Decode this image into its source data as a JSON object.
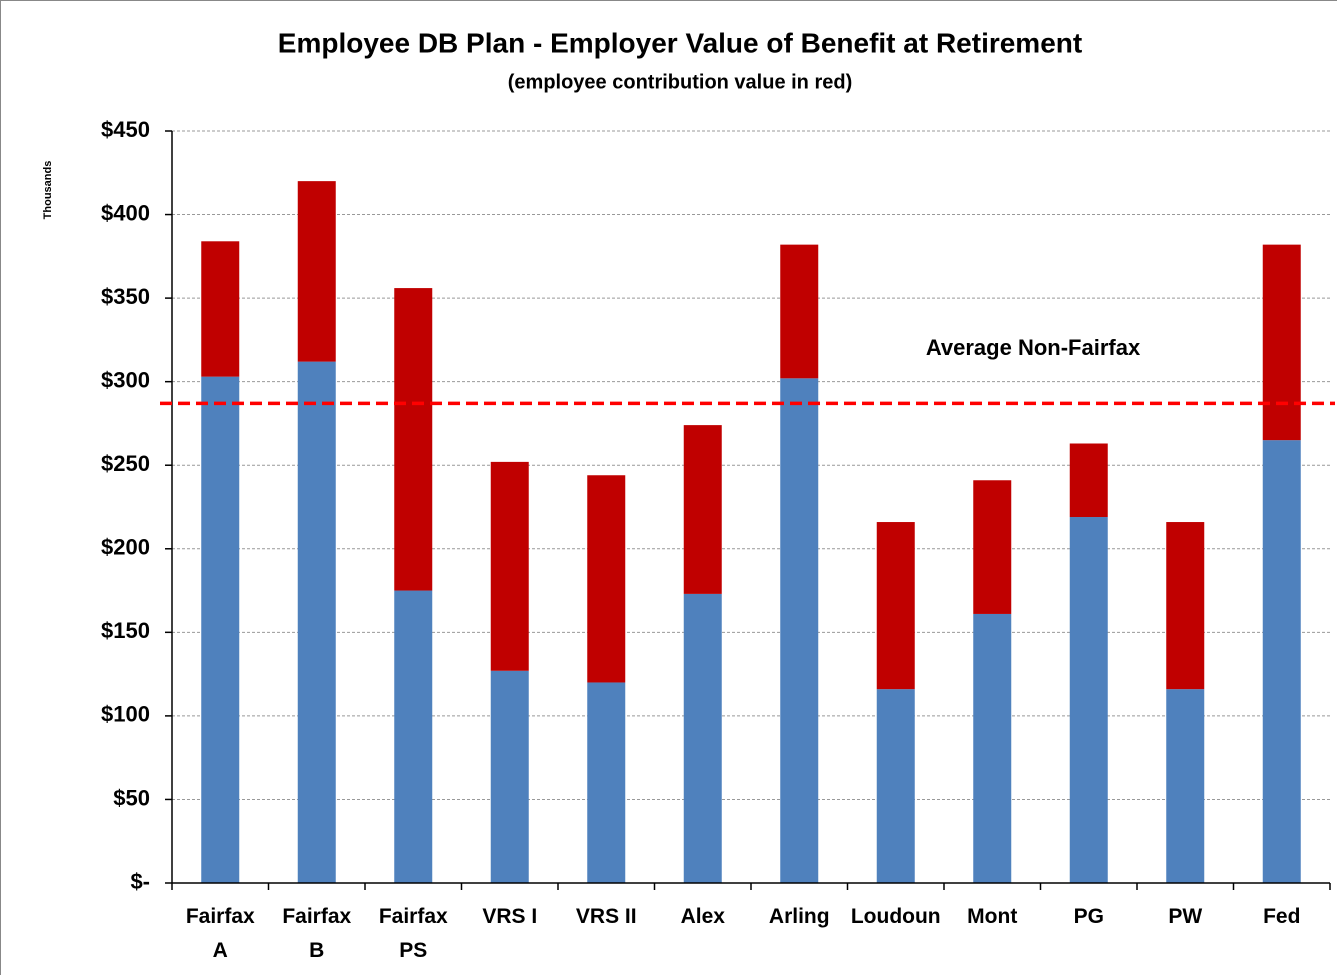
{
  "chart_data": {
    "type": "stacked_bar",
    "title": "Employee DB Plan - Employer Value of Benefit at Retirement",
    "subtitle": "(employee contribution value in red)",
    "y_axis_label": "Thousands",
    "categories": [
      "Fairfax\nA",
      "Fairfax\nB",
      "Fairfax\nPS",
      "VRS I",
      "VRS II",
      "Alex",
      "Arling",
      "Loudoun",
      "Mont",
      "PG",
      "PW",
      "Fed"
    ],
    "series": [
      {
        "color": "#4f81bd",
        "values": [
          303,
          312,
          175,
          127,
          120,
          173,
          302,
          116,
          161,
          219,
          116,
          265
        ]
      },
      {
        "color": "#c00000",
        "values": [
          81,
          108,
          181,
          125,
          124,
          101,
          80,
          100,
          80,
          44,
          100,
          117
        ]
      }
    ],
    "reference_line": {
      "label": "Average Non-Fairfax",
      "value": 287,
      "color": "#ff0000"
    },
    "ylim": [
      0,
      450
    ],
    "yticks": [
      {
        "value": 0,
        "label": "$-"
      },
      {
        "value": 50,
        "label": "$50"
      },
      {
        "value": 100,
        "label": "$100"
      },
      {
        "value": 150,
        "label": "$150"
      },
      {
        "value": 200,
        "label": "$200"
      },
      {
        "value": 250,
        "label": "$250"
      },
      {
        "value": 300,
        "label": "$300"
      },
      {
        "value": 350,
        "label": "$350"
      },
      {
        "value": 400,
        "label": "$400"
      },
      {
        "value": 450,
        "label": "$450"
      }
    ],
    "grid": true
  }
}
